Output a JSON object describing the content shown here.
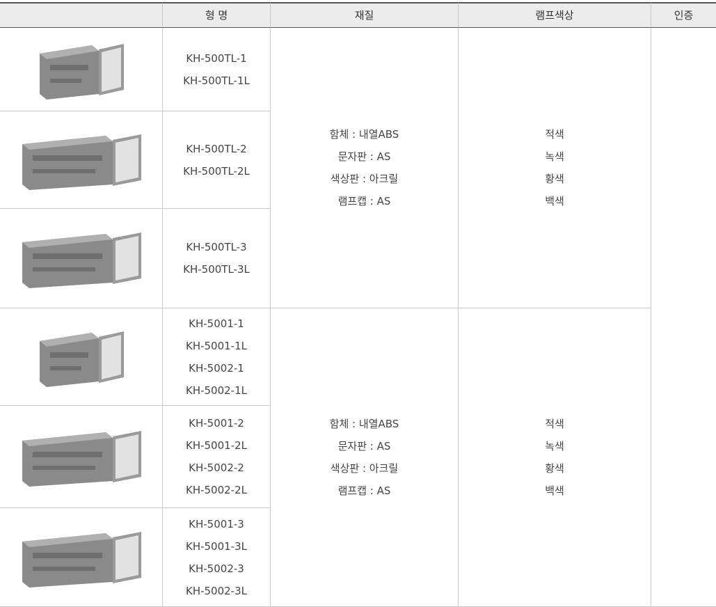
{
  "header": [
    "형 명",
    "재질",
    "램프색상",
    "인증"
  ],
  "groups": [
    {
      "rows": [
        [
          "KH-500TL-1",
          "KH-500TL-1L"
        ],
        [
          "KH-500TL-2",
          "KH-500TL-2L"
        ],
        [
          "KH-500TL-3",
          "KH-500TL-3L"
        ]
      ],
      "material": [
        "함체 : 내열ABS",
        "문자판 : AS",
        "색상판 : 아크릴",
        "램프캡 : AS"
      ],
      "colors": [
        "적색",
        "녹색",
        "황색",
        "백색"
      ]
    },
    {
      "rows": [
        [
          "KH-5001-1",
          "KH-5001-1L",
          "KH-5002-1",
          "KH-5002-1L"
        ],
        [
          "KH-5001-2",
          "KH-5001-2L",
          "KH-5002-2",
          "KH-5002-2L"
        ],
        [
          "KH-5001-3",
          "KH-5001-3L",
          "KH-5002-3",
          "KH-5002-3L"
        ]
      ],
      "material": [
        "함체 : 내열ABS",
        "문자판 : AS",
        "색상판 : 아크릴",
        "램프캡 : AS"
      ],
      "colors": [
        "적색",
        "녹색",
        "황색",
        "백색"
      ]
    }
  ]
}
